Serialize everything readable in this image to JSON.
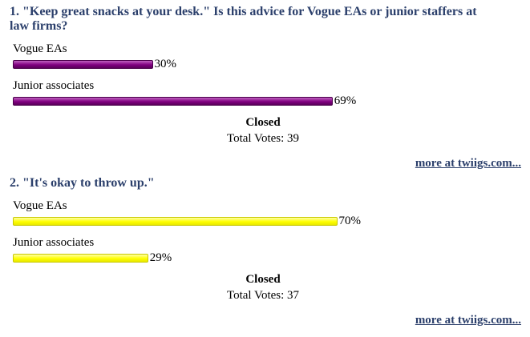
{
  "chart_data": [
    {
      "type": "bar",
      "orientation": "horizontal",
      "title": "1. \"Keep great snacks at your desk.\" Is this advice for Vogue EAs or junior staffers at law firms?",
      "categories": [
        "Vogue EAs",
        "Junior associates"
      ],
      "values": [
        30,
        69
      ],
      "value_labels": [
        "30%",
        "69%"
      ],
      "color": "#800080",
      "status": "Closed",
      "total_votes": "Total Votes: 39",
      "link": "more at twiigs.com..."
    },
    {
      "type": "bar",
      "orientation": "horizontal",
      "title": "2. \"It's okay to throw up.\"",
      "categories": [
        "Vogue EAs",
        "Junior associates"
      ],
      "values": [
        70,
        29
      ],
      "value_labels": [
        "70%",
        "29%"
      ],
      "color": "#ffff00",
      "status": "Closed",
      "total_votes": "Total Votes: 37",
      "link": "more at twiigs.com..."
    }
  ]
}
